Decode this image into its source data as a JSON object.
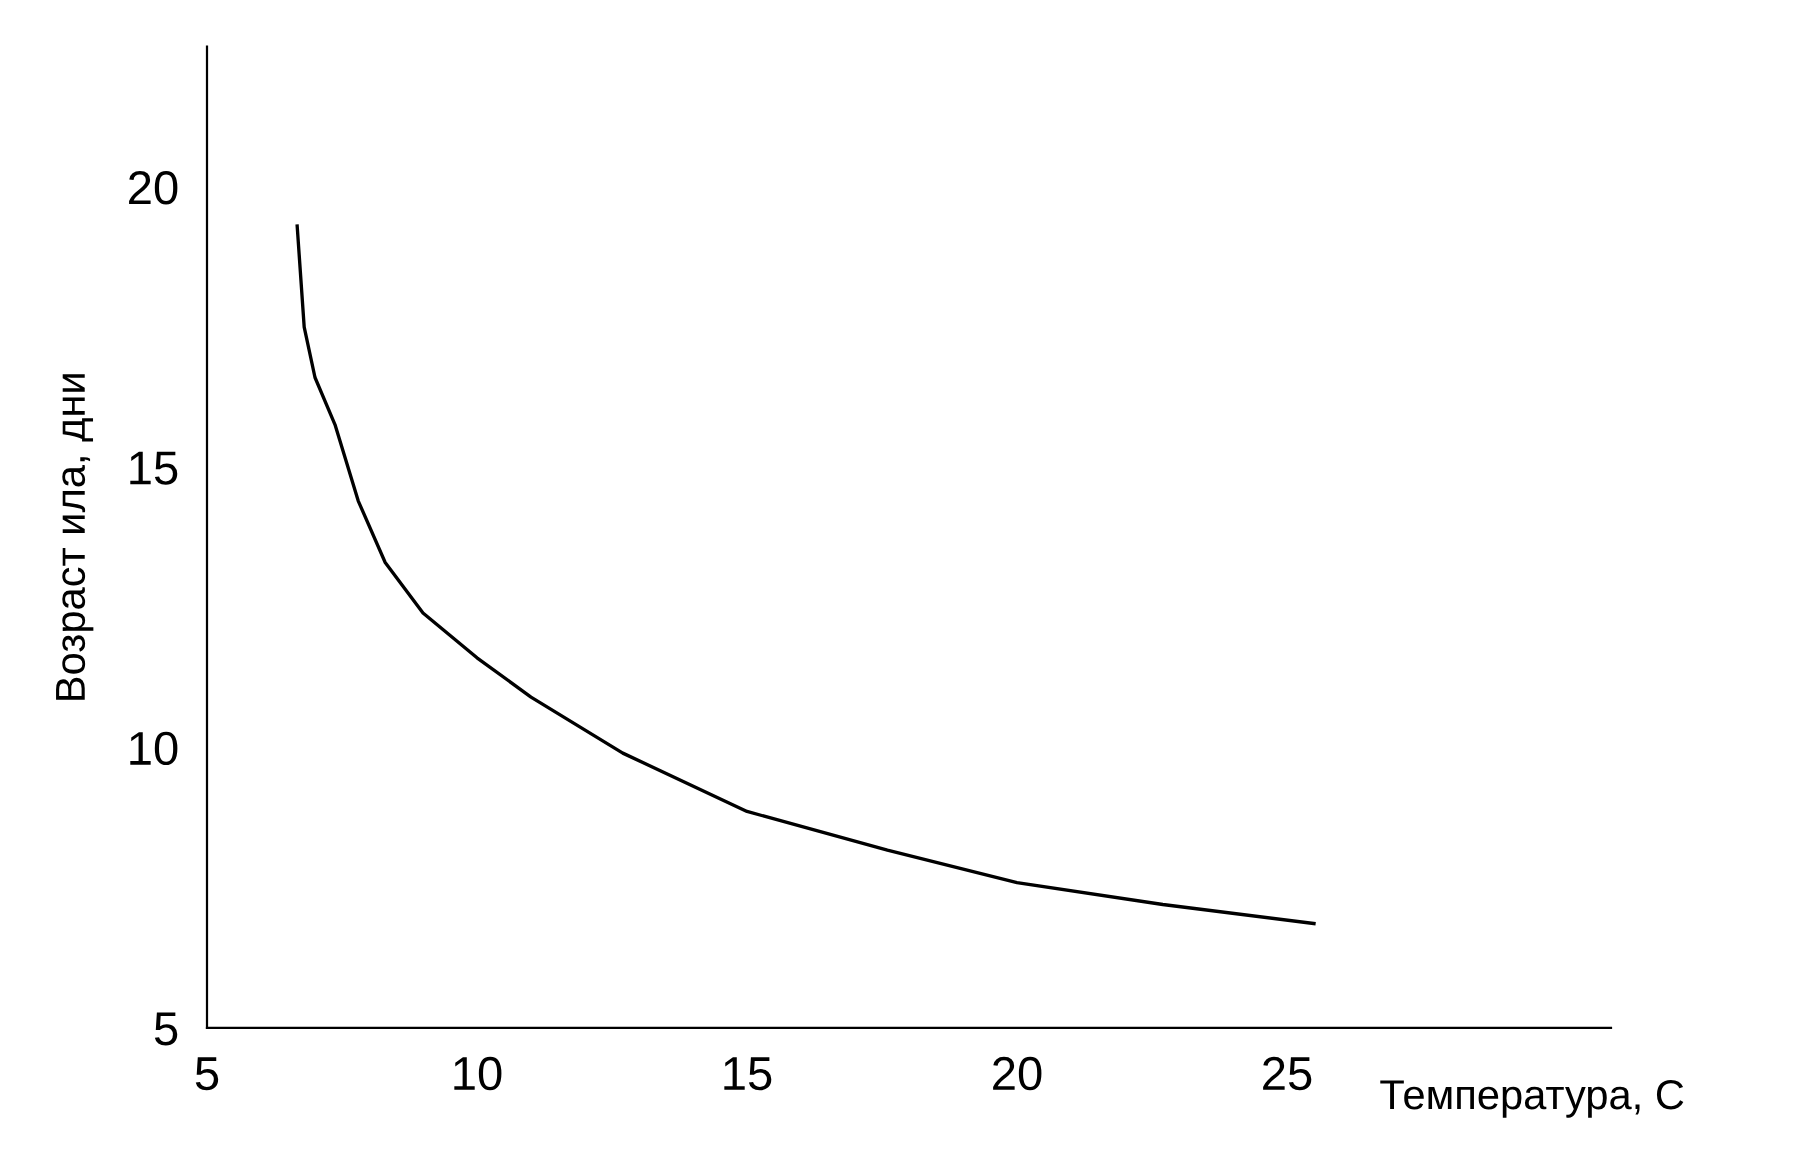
{
  "chart_data": {
    "type": "line",
    "xlabel": "Температура, С",
    "ylabel": "Возраст ила, дни",
    "series": [
      {
        "color": "#000000",
        "x": [
          6.67,
          6.8,
          7.0,
          7.37,
          7.8,
          8.3,
          9.0,
          10.0,
          11.0,
          12.7,
          15.0,
          17.6,
          20.0,
          22.7,
          25.5
        ],
        "values": [
          19.3,
          17.5,
          16.6,
          15.76,
          14.4,
          13.3,
          12.4,
          11.6,
          10.9,
          9.9,
          8.86,
          8.17,
          7.59,
          7.2,
          6.86
        ]
      }
    ],
    "xlim": [
      5,
      31
    ],
    "ylim": [
      5,
      22.5
    ],
    "xticks": [
      5,
      10,
      15,
      20,
      25
    ],
    "yticks": [
      5,
      10,
      15,
      20
    ],
    "grid": false,
    "marker": "none",
    "line_style": "solid"
  }
}
